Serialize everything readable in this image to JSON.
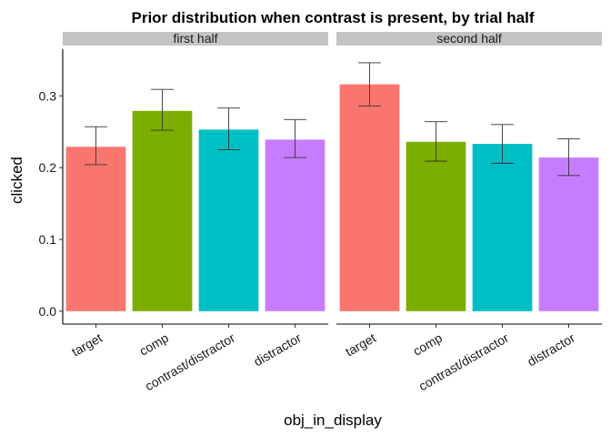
{
  "chart_data": {
    "type": "bar",
    "title": "Prior distribution when contrast is present, by trial half",
    "xlabel": "obj_in_display",
    "ylabel": "clicked",
    "ylim": [
      -0.018,
      0.365
    ],
    "yticks": [
      0.0,
      0.1,
      0.2,
      0.3
    ],
    "ytick_labels": [
      "0.0",
      "0.1",
      "0.2",
      "0.3"
    ],
    "grid": false,
    "legend": "none",
    "categories": [
      "target",
      "comp",
      "contrast/distractor",
      "distractor"
    ],
    "colors": [
      "#F8766D",
      "#7CAE00",
      "#00BFC4",
      "#C77CFF"
    ],
    "facets": [
      {
        "name": "first half",
        "values": [
          0.229,
          0.279,
          0.253,
          0.239
        ],
        "err_low": [
          0.204,
          0.252,
          0.225,
          0.214
        ],
        "err_high": [
          0.257,
          0.309,
          0.283,
          0.267
        ]
      },
      {
        "name": "second half",
        "values": [
          0.316,
          0.236,
          0.233,
          0.214
        ],
        "err_low": [
          0.286,
          0.209,
          0.206,
          0.189
        ],
        "err_high": [
          0.346,
          0.264,
          0.26,
          0.24
        ]
      }
    ]
  }
}
